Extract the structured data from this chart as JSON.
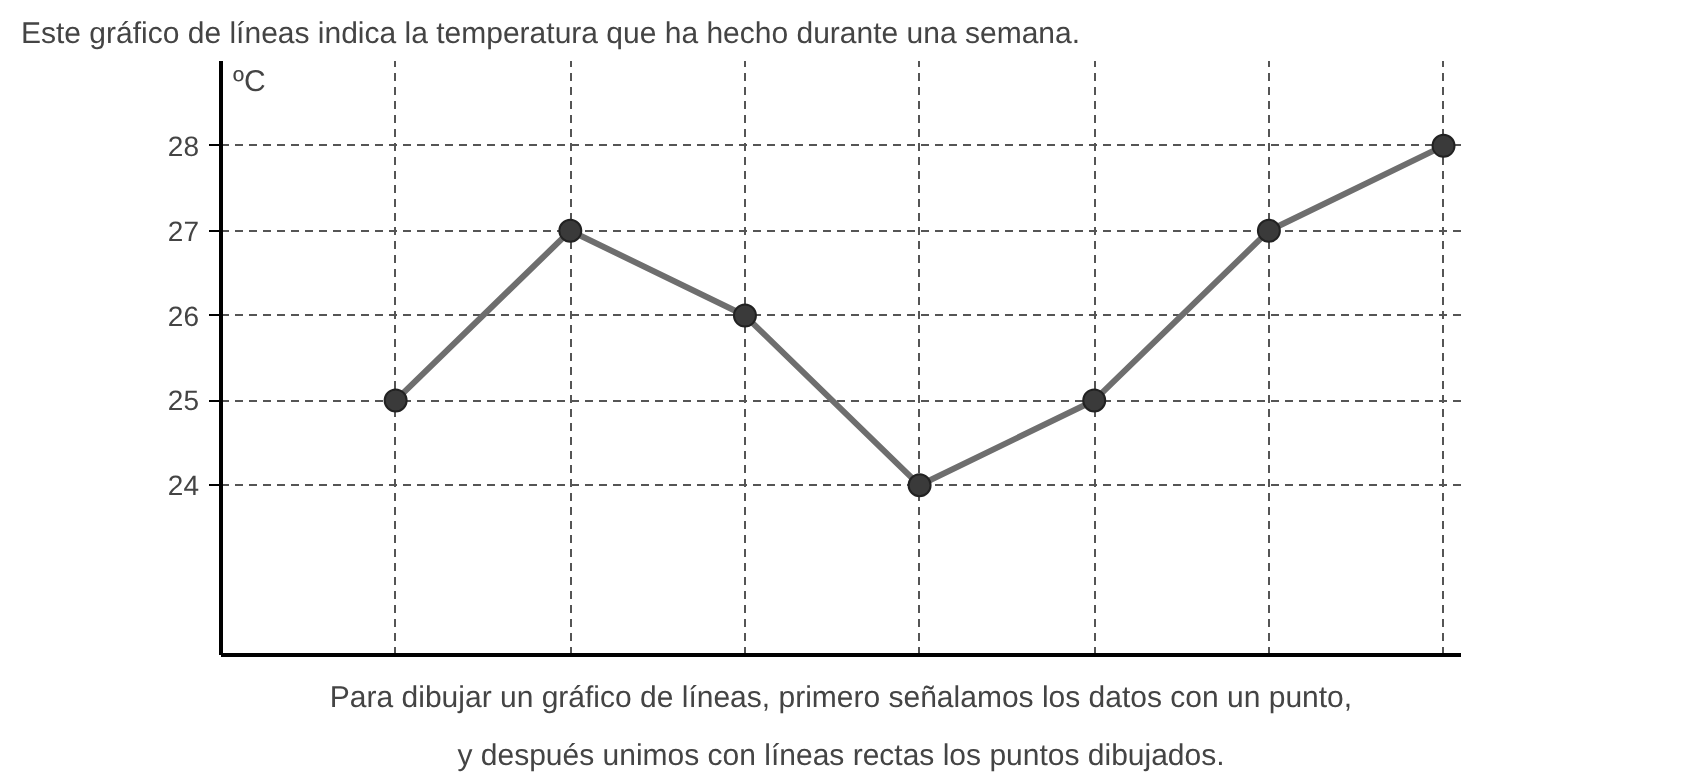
{
  "chart_data": {
    "type": "line",
    "title": "Este gráfico de líneas indica la temperatura que ha hecho durante una semana.",
    "ylabel": "ºC",
    "categories": [
      null,
      null,
      null,
      null,
      null,
      null,
      null
    ],
    "series": [
      {
        "color": "#6e6e6e",
        "values": [
          25,
          27,
          26,
          24,
          25,
          27,
          28
        ]
      }
    ],
    "ylim": [
      22,
      29
    ],
    "yticks": [
      24,
      25,
      26,
      27,
      28
    ],
    "marker": "circle",
    "line_style": "solid",
    "grid": true,
    "annotations": [
      "Para dibujar un gráfico de líneas, primero señalamos los datos con un punto,\ny después unimos con líneas rectas los puntos dibujados."
    ]
  }
}
